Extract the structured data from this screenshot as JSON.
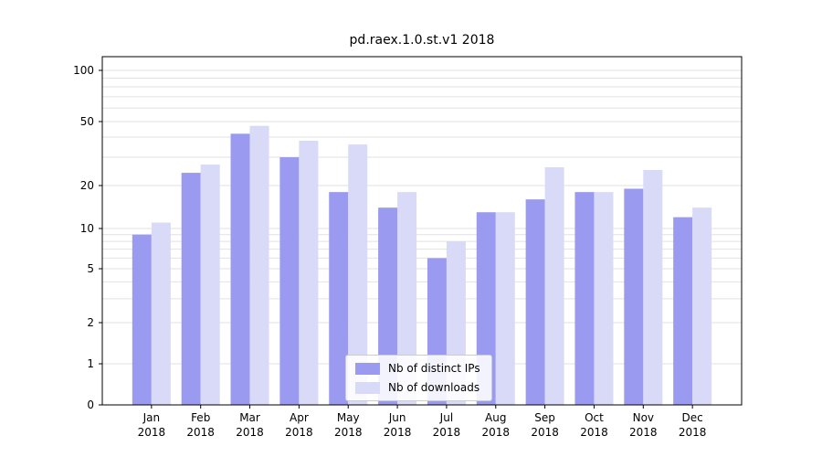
{
  "chart_data": {
    "type": "bar",
    "title": "pd.raex.1.0.st.v1 2018",
    "categories": [
      "Jan",
      "Feb",
      "Mar",
      "Apr",
      "May",
      "Jun",
      "Jul",
      "Aug",
      "Sep",
      "Oct",
      "Nov",
      "Dec"
    ],
    "year": "2018",
    "series": [
      {
        "name": "Nb of distinct IPs",
        "color": "#9a9af0",
        "values": [
          9,
          24,
          42,
          30,
          18,
          14,
          6,
          13,
          16,
          18,
          19,
          12
        ]
      },
      {
        "name": "Nb of downloads",
        "color": "#d9d9f8",
        "values": [
          11,
          27,
          47,
          38,
          36,
          18,
          8,
          13,
          26,
          18,
          25,
          14
        ]
      }
    ],
    "y_ticks": [
      0,
      1,
      2,
      5,
      10,
      20,
      50,
      100
    ],
    "y_scale": "symlog",
    "ylim": [
      0,
      125
    ],
    "grid": "horizontal-minor-log",
    "legend_position": "lower center",
    "grid_color": "#e2e2e2",
    "axis_color": "#000000",
    "text_color": "#000000"
  }
}
